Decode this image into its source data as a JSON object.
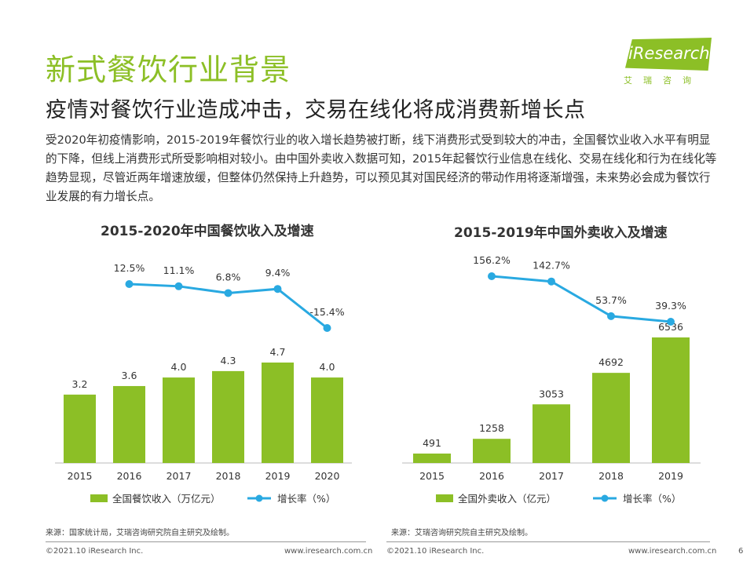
{
  "header": {
    "title": "新式餐饮行业背景",
    "subtitle": "疫情对餐饮行业造成冲击，交易在线化将成消费新增长点",
    "paragraph": "受2020年初疫情影响，2015-2019年餐饮行业的收入增长趋势被打断，线下消费形式受到较大的冲击，全国餐饮业收入水平有明显的下降，但线上消费形式所受影响相对较小。由中国外卖收入数据可知，2015年起餐饮行业信息在线化、交易在线化和行为在线化等趋势显现，尽管近两年增速放缓，但整体仍然保持上升趋势，可以预见其对国民经济的带动作用将逐渐增强，未来势必会成为餐饮行业发展的有力增长点。"
  },
  "logo": {
    "word": "iResearch",
    "cn": "艾瑞咨询"
  },
  "colors": {
    "bar": "#8cbf26",
    "line": "#29a9e1",
    "title": "#8cbf26"
  },
  "chart_data": [
    {
      "type": "bar",
      "title": "2015-2020年中国餐饮收入及增速",
      "categories": [
        "2015",
        "2016",
        "2017",
        "2018",
        "2019",
        "2020"
      ],
      "series": [
        {
          "name": "全国餐饮收入（万亿元）",
          "type": "bar",
          "values": [
            3.2,
            3.6,
            4.0,
            4.3,
            4.7,
            4.0
          ],
          "labels": [
            "3.2",
            "3.6",
            "4.0",
            "4.3",
            "4.7",
            "4.0"
          ]
        },
        {
          "name": "增长率（%）",
          "type": "line",
          "values": [
            null,
            12.5,
            11.1,
            6.8,
            9.4,
            -15.4
          ],
          "labels": [
            "",
            "12.5%",
            "11.1%",
            "6.8%",
            "9.4%",
            "-15.4%"
          ]
        }
      ],
      "source": "来源：国家统计局，艾瑞咨询研究院自主研究及绘制。"
    },
    {
      "type": "bar",
      "title": "2015-2019年中国外卖收入及增速",
      "categories": [
        "2015",
        "2016",
        "2017",
        "2018",
        "2019"
      ],
      "series": [
        {
          "name": "全国外卖收入（亿元）",
          "type": "bar",
          "values": [
            491,
            1258,
            3053,
            4692,
            6536
          ],
          "labels": [
            "491",
            "1258",
            "3053",
            "4692",
            "6536"
          ]
        },
        {
          "name": "增长率（%）",
          "type": "line",
          "values": [
            null,
            156.2,
            142.7,
            53.7,
            39.3
          ],
          "labels": [
            "",
            "156.2%",
            "142.7%",
            "53.7%",
            "39.3%"
          ]
        }
      ],
      "source": "来源：艾瑞咨询研究院自主研究及绘制。"
    }
  ],
  "footer": {
    "left_copyright": "©2021.10 iResearch Inc.",
    "left_url": "www.iresearch.com.cn",
    "right_copyright": "©2021.10 iResearch Inc.",
    "right_url": "www.iresearch.com.cn",
    "page_number": "6"
  }
}
